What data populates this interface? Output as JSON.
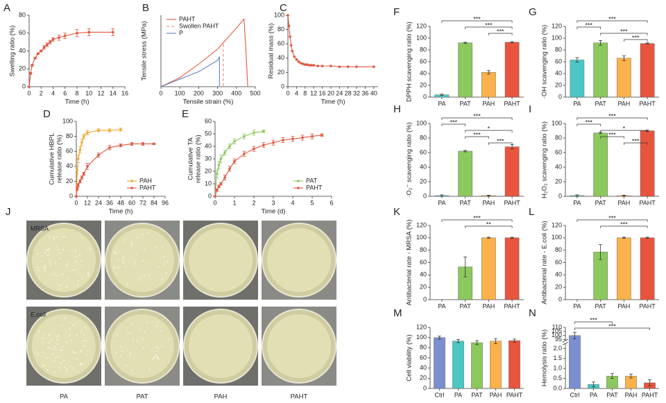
{
  "chart_data": [
    {
      "type": "line",
      "panel": "A",
      "xlabel": "Time (h)",
      "ylabel": "Swelling ratio (%)",
      "xlim": [
        0,
        16
      ],
      "xticks": [
        0,
        2,
        4,
        6,
        8,
        10,
        12,
        14,
        16
      ],
      "ylim": [
        0,
        80
      ],
      "yticks": [
        0,
        20,
        40,
        60,
        80
      ],
      "series": [
        {
          "color": "#e0553d",
          "marker": true,
          "x": [
            0,
            0.25,
            0.5,
            1,
            1.5,
            2,
            2.5,
            3,
            3.5,
            4,
            5,
            6,
            8,
            10,
            14
          ],
          "values": [
            0,
            15,
            24,
            32,
            37,
            40,
            44,
            47,
            50,
            53,
            55,
            57,
            60,
            61,
            61
          ],
          "errors": [
            0,
            1,
            1,
            1,
            1,
            1,
            2,
            2,
            2,
            2,
            3,
            3,
            4,
            4,
            4
          ]
        }
      ]
    },
    {
      "type": "line",
      "panel": "B",
      "xlabel": "Tensile strain (%)",
      "ylabel": "Tensile stress (MPa)",
      "xlim": [
        0,
        500
      ],
      "xticks": [
        0,
        100,
        200,
        300,
        400,
        500
      ],
      "ylim": [
        0,
        0.95
      ],
      "legend": "upper left",
      "series": [
        {
          "name": "PAHT",
          "color": "#e0553d",
          "x": [
            0,
            100,
            200,
            300,
            400,
            440,
            450,
            460
          ],
          "values": [
            0,
            0.12,
            0.3,
            0.5,
            0.78,
            0.9,
            0.5,
            0
          ]
        },
        {
          "name": "Swollen PAHT",
          "color": "#e8806a",
          "dash": true,
          "x": [
            0,
            100,
            200,
            300,
            330,
            330
          ],
          "values": [
            0,
            0.12,
            0.3,
            0.5,
            0.58,
            0
          ]
        },
        {
          "name": "P",
          "color": "#5b7fc4",
          "x": [
            0,
            100,
            200,
            300,
            310,
            310
          ],
          "values": [
            0,
            0.1,
            0.2,
            0.35,
            0.4,
            0
          ]
        }
      ]
    },
    {
      "type": "line",
      "panel": "C",
      "xlabel": "Time (h)",
      "ylabel": "Residual mass (%)",
      "xlim": [
        0,
        42
      ],
      "xticks": [
        0,
        4,
        8,
        12,
        16,
        20,
        24,
        28,
        32,
        36,
        40
      ],
      "ylim": [
        0,
        100
      ],
      "yticks": [
        0,
        20,
        40,
        60,
        80,
        100
      ],
      "series": [
        {
          "color": "#e0553d",
          "marker": true,
          "x": [
            0,
            0.5,
            1,
            1.5,
            2,
            3,
            4,
            5,
            6,
            7,
            8,
            9,
            10,
            11,
            12,
            14,
            16,
            20,
            24,
            28,
            32,
            40
          ],
          "values": [
            100,
            85,
            70,
            58,
            50,
            42,
            38,
            35,
            33,
            32,
            31,
            31,
            30,
            30,
            30,
            29,
            29,
            29,
            28,
            28,
            28,
            28
          ]
        }
      ]
    },
    {
      "type": "line",
      "panel": "D",
      "xlabel": "Time (h)",
      "ylabel": [
        "Cumulative HBPL",
        "release ratio (%)"
      ],
      "xlim": [
        0,
        96
      ],
      "xticks": [
        0,
        12,
        24,
        36,
        48,
        60,
        72,
        84,
        96
      ],
      "ylim": [
        0,
        100
      ],
      "yticks": [
        0,
        20,
        40,
        60,
        80,
        100
      ],
      "legend": "lower right",
      "series": [
        {
          "name": "PAH",
          "color": "#f0a830",
          "marker": true,
          "x": [
            0,
            1,
            2,
            4,
            6,
            8,
            12,
            24,
            36,
            48
          ],
          "values": [
            0,
            35,
            50,
            62,
            72,
            80,
            85,
            88,
            88,
            89
          ],
          "errors": [
            0,
            5,
            5,
            4,
            4,
            3,
            3,
            2,
            2,
            2
          ]
        },
        {
          "name": "PAHT",
          "color": "#e0553d",
          "marker": true,
          "x": [
            0,
            1,
            2,
            4,
            6,
            8,
            12,
            24,
            36,
            48,
            60,
            72,
            84
          ],
          "values": [
            0,
            10,
            15,
            20,
            25,
            30,
            40,
            55,
            65,
            68,
            70,
            70,
            70
          ],
          "errors": [
            0,
            2,
            2,
            2,
            2,
            2,
            4,
            3,
            3,
            2,
            2,
            2,
            1
          ]
        }
      ]
    },
    {
      "type": "line",
      "panel": "E",
      "xlabel": "Time (d)",
      "ylabel": [
        "Cumulative TA",
        "release ratio (%)"
      ],
      "xlim": [
        0,
        6
      ],
      "xticks": [
        0,
        1,
        2,
        3,
        4,
        5,
        6
      ],
      "ylim": [
        0,
        60
      ],
      "yticks": [
        0,
        10,
        20,
        30,
        40,
        50,
        60
      ],
      "legend": "lower right",
      "series": [
        {
          "name": "PAT",
          "color": "#8dc85e",
          "marker": true,
          "x": [
            0,
            0.1,
            0.2,
            0.3,
            0.5,
            0.75,
            1,
            1.5,
            2,
            2.5
          ],
          "values": [
            0,
            18,
            25,
            30,
            35,
            40,
            44,
            48,
            51,
            52
          ],
          "errors": [
            0,
            3,
            3,
            3,
            2,
            2,
            2,
            2,
            2,
            1
          ]
        },
        {
          "name": "PAHT",
          "color": "#e0553d",
          "marker": true,
          "x": [
            0,
            0.1,
            0.2,
            0.3,
            0.5,
            0.75,
            1,
            1.5,
            2,
            2.5,
            3,
            3.5,
            4,
            4.5,
            5,
            5.5
          ],
          "values": [
            0,
            5,
            8,
            10,
            15,
            22,
            28,
            34,
            38,
            41,
            43,
            45,
            46,
            47,
            48,
            49
          ],
          "errors": [
            0,
            1,
            1,
            1,
            2,
            2,
            2,
            2,
            2,
            2,
            2,
            2,
            2,
            2,
            2,
            1
          ]
        }
      ]
    },
    {
      "type": "bar",
      "panel": "F",
      "ylabel": "DPPH scavenging ratio (%)",
      "categories": [
        "PA",
        "PAT",
        "PAH",
        "PAHT"
      ],
      "colors": [
        "#4bc8c4",
        "#8dc85e",
        "#fbb24a",
        "#e8553e"
      ],
      "values": [
        4,
        92,
        42,
        93
      ],
      "errors": [
        1,
        1,
        3,
        1
      ],
      "ylim": [
        0,
        120
      ],
      "yticks": [
        0,
        20,
        40,
        60,
        80,
        100,
        120
      ],
      "significance": [
        {
          "pair": [
            0,
            3
          ],
          "label": "***"
        },
        {
          "pair": [
            1,
            3
          ],
          "label": "***"
        },
        {
          "pair": [
            2,
            3
          ],
          "label": "***"
        }
      ]
    },
    {
      "type": "bar",
      "panel": "G",
      "ylabel": "·OH scavenging ratio (%)",
      "categories": [
        "PA",
        "PAT",
        "PAH",
        "PAHT"
      ],
      "colors": [
        "#4bc8c4",
        "#8dc85e",
        "#fbb24a",
        "#e8553e"
      ],
      "values": [
        63,
        92,
        66,
        91
      ],
      "errors": [
        4,
        4,
        4,
        1
      ],
      "ylim": [
        0,
        120
      ],
      "yticks": [
        0,
        20,
        40,
        60,
        80,
        100,
        120
      ],
      "significance": [
        {
          "pair": [
            0,
            3
          ],
          "label": "***"
        },
        {
          "pair": [
            0,
            1
          ],
          "label": "***"
        },
        {
          "pair": [
            1,
            3
          ],
          "label": "***"
        },
        {
          "pair": [
            2,
            3
          ],
          "label": "***"
        }
      ]
    },
    {
      "type": "bar",
      "panel": "H",
      "ylabel": "·O₂⁻ scavenging ratio (%)",
      "categories": [
        "PA",
        "PAT",
        "PAH",
        "PAHT"
      ],
      "colors": [
        "#4bc8c4",
        "#8dc85e",
        "#fbb24a",
        "#e8553e"
      ],
      "values": [
        1,
        62,
        1,
        68
      ],
      "errors": [
        1,
        1,
        0.5,
        3
      ],
      "ylim": [
        0,
        100
      ],
      "yticks": [
        0,
        20,
        40,
        60,
        80,
        100
      ],
      "significance": [
        {
          "pair": [
            0,
            3
          ],
          "label": "***"
        },
        {
          "pair": [
            0,
            1
          ],
          "label": "***"
        },
        {
          "pair": [
            1,
            3
          ],
          "label": "*"
        },
        {
          "pair": [
            1,
            2
          ],
          "label": "***"
        },
        {
          "pair": [
            2,
            3
          ],
          "label": "***"
        }
      ]
    },
    {
      "type": "bar",
      "panel": "I",
      "ylabel": "H₂O₂ scavenging ratio (%)",
      "categories": [
        "PA",
        "PAT",
        "PAH",
        "PAHT"
      ],
      "colors": [
        "#4bc8c4",
        "#8dc85e",
        "#fbb24a",
        "#e8553e"
      ],
      "values": [
        1,
        87,
        1,
        90
      ],
      "errors": [
        1,
        1,
        0.5,
        1
      ],
      "ylim": [
        0,
        100
      ],
      "yticks": [
        0,
        20,
        40,
        60,
        80,
        100
      ],
      "significance": [
        {
          "pair": [
            0,
            3
          ],
          "label": "***"
        },
        {
          "pair": [
            0,
            1
          ],
          "label": "***"
        },
        {
          "pair": [
            1,
            3
          ],
          "label": "*"
        },
        {
          "pair": [
            1,
            2
          ],
          "label": "***"
        },
        {
          "pair": [
            2,
            3
          ],
          "label": "***"
        }
      ]
    },
    {
      "type": "bar",
      "panel": "K",
      "ylabel": "Antibacterial rate - MRSA (%)",
      "categories": [
        "PA",
        "PAT",
        "PAH",
        "PAHT"
      ],
      "colors": [
        "#4bc8c4",
        "#8dc85e",
        "#fbb24a",
        "#e8553e"
      ],
      "values": [
        0,
        53,
        100,
        100
      ],
      "errors": [
        0,
        16,
        1,
        1
      ],
      "ylim": [
        0,
        120
      ],
      "yticks": [
        0,
        20,
        40,
        60,
        80,
        100,
        120
      ],
      "significance": [
        {
          "pair": [
            0,
            3
          ],
          "label": "***"
        },
        {
          "pair": [
            1,
            3
          ],
          "label": "**"
        }
      ]
    },
    {
      "type": "bar",
      "panel": "L",
      "ylabel": "Antibacterial rate - E.coli (%)",
      "categories": [
        "PA",
        "PAT",
        "PAH",
        "PAHT"
      ],
      "colors": [
        "#4bc8c4",
        "#8dc85e",
        "#fbb24a",
        "#e8553e"
      ],
      "values": [
        0,
        77,
        100,
        100
      ],
      "errors": [
        0,
        12,
        1,
        1
      ],
      "ylim": [
        0,
        120
      ],
      "yticks": [
        0,
        20,
        40,
        60,
        80,
        100,
        120
      ],
      "significance": [
        {
          "pair": [
            0,
            3
          ],
          "label": "***"
        },
        {
          "pair": [
            1,
            3
          ],
          "label": "***"
        }
      ]
    },
    {
      "type": "bar",
      "panel": "M",
      "ylabel": "Cell viability (%)",
      "categories": [
        "Ctrl",
        "PA",
        "PAT",
        "PAH",
        "PAHT"
      ],
      "colors": [
        "#7b8fd0",
        "#4bc8c4",
        "#8dc85e",
        "#fbb24a",
        "#e8553e"
      ],
      "values": [
        100,
        93,
        90,
        93,
        94
      ],
      "errors": [
        3,
        3,
        4,
        5,
        3
      ],
      "ylim": [
        0,
        120
      ],
      "yticks": [
        0,
        20,
        40,
        60,
        80,
        100,
        120
      ]
    },
    {
      "type": "bar",
      "panel": "N",
      "ylabel": "Hemolysis ratio (%)",
      "categories": [
        "Ctrl",
        "PA",
        "PAT",
        "PAH",
        "PAHT"
      ],
      "colors": [
        "#7b8fd0",
        "#4bc8c4",
        "#8dc85e",
        "#fbb24a",
        "#e8553e"
      ],
      "values": [
        100,
        0.2,
        0.62,
        0.62,
        0.28
      ],
      "errors": [
        4,
        0.12,
        0.12,
        0.1,
        0.15
      ],
      "ylim": [
        0,
        110
      ],
      "ybreak": [
        2.2,
        95
      ],
      "yticks": [
        {
          "value": 0,
          "label": "0.0"
        },
        0.5,
        {
          "value": 1,
          "label": "1.0"
        },
        1.5,
        {
          "value": 2,
          "label": "2.0"
        },
        95,
        100,
        105,
        110
      ],
      "significance": [
        {
          "pair": [
            0,
            2
          ],
          "label": "***"
        },
        {
          "pair": [
            0,
            4
          ],
          "label": "***"
        }
      ]
    }
  ],
  "photo_panel": {
    "panel": "J",
    "rows": [
      "MRSA",
      "E.coli"
    ],
    "columns": [
      "PA",
      "PAT",
      "PAH",
      "PAHT"
    ]
  }
}
